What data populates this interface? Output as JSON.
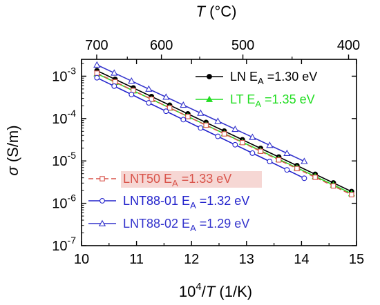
{
  "chart_data": {
    "type": "line",
    "x_axis": {
      "label_base": "10",
      "label_sup": "4",
      "label_slash": "/",
      "label_var": "T",
      "label_unit": " (1/K)",
      "range": [
        10,
        15
      ],
      "ticks": [
        "10",
        "11",
        "12",
        "13",
        "14",
        "15"
      ]
    },
    "top_axis": {
      "label_var": "T",
      "label_unit": " (°C)",
      "ticks": [
        {
          "celsius": 700,
          "label": "700"
        },
        {
          "celsius": 600,
          "label": "600"
        },
        {
          "celsius": 500,
          "label": "500"
        },
        {
          "celsius": 400,
          "label": "400"
        }
      ]
    },
    "y_axis": {
      "label_var": "σ",
      "label_unit": " (S/m)",
      "scale": "log",
      "range": [
        1e-07,
        0.0025
      ],
      "ticks": [
        {
          "value": 1e-07,
          "base": "10",
          "exp": "-7"
        },
        {
          "value": 1e-06,
          "base": "10",
          "exp": "-6"
        },
        {
          "value": 1e-05,
          "base": "10",
          "exp": "-5"
        },
        {
          "value": 0.0001,
          "base": "10",
          "exp": "-4"
        },
        {
          "value": 0.001,
          "base": "10",
          "exp": "-3"
        }
      ]
    },
    "series": [
      {
        "name": "LN",
        "legend_prefix": "LN E",
        "legend_sub": "A",
        "legend_suffix": " =1.30 eV",
        "color": "#000000",
        "line": "solid",
        "marker": "filled-circle",
        "x_start": 10.28,
        "x_end": 14.91,
        "y_start": 0.00135,
        "y_end": 1.9e-06,
        "n_points": 15
      },
      {
        "name": "LT",
        "legend_prefix": "LT E",
        "legend_sub": "A",
        "legend_suffix": " =1.35 eV",
        "color": "#22dd22",
        "line": "solid",
        "marker": "filled-triangle",
        "x_start": 10.28,
        "x_end": 14.91,
        "y_start": 0.00115,
        "y_end": 1.7e-06,
        "n_points": 15
      },
      {
        "name": "LNT50",
        "legend_prefix": "LNT50 E",
        "legend_sub": "A",
        "legend_suffix": " =1.33 eV",
        "color": "#d9534a",
        "line": "dashed",
        "marker": "open-square",
        "x_start": 10.28,
        "x_end": 14.91,
        "y_start": 0.00118,
        "y_end": 1.6e-06,
        "n_points": 15
      },
      {
        "name": "LNT88-01",
        "legend_prefix": "LNT88-01 E",
        "legend_sub": "A",
        "legend_suffix": " =1.32 eV",
        "color": "#2222cc",
        "line": "solid",
        "marker": "open-circle",
        "x_start": 10.28,
        "x_end": 14.05,
        "y_start": 0.00092,
        "y_end": 3.9e-06,
        "n_points": 13
      },
      {
        "name": "LNT88-02",
        "legend_prefix": "LNT88-02 E",
        "legend_sub": "A",
        "legend_suffix": " =1.29 eV",
        "color": "#3333cc",
        "line": "solid",
        "marker": "open-triangle",
        "x_start": 10.28,
        "x_end": 14.05,
        "y_start": 0.00185,
        "y_end": 9.8e-06,
        "n_points": 13
      }
    ]
  }
}
